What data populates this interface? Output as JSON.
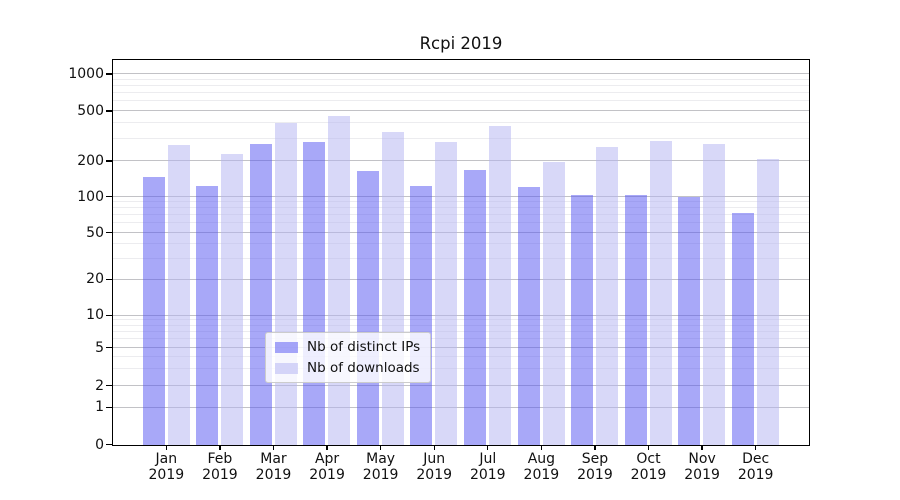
{
  "chart_data": {
    "type": "bar",
    "title": "Rcpi 2019",
    "categories": [
      "Jan",
      "Feb",
      "Mar",
      "Apr",
      "May",
      "Jun",
      "Jul",
      "Aug",
      "Sep",
      "Oct",
      "Nov",
      "Dec"
    ],
    "category_year": "2019",
    "series": [
      {
        "name": "Nb of distinct IPs",
        "color": "#5151f1",
        "opacity": 0.5,
        "rendered_color": "#a8a8f8",
        "values": [
          147,
          125,
          277,
          287,
          167,
          125,
          169,
          121,
          103,
          103,
          101,
          74
        ]
      },
      {
        "name": "Nb of downloads",
        "color": "#b1b1f1",
        "opacity": 0.5,
        "rendered_color": "#d8d8f8",
        "values": [
          272,
          228,
          400,
          455,
          340,
          283,
          380,
          198,
          260,
          288,
          275,
          210
        ]
      }
    ],
    "xlabel": "",
    "ylabel": "",
    "yscale": "symlog",
    "yticks": [
      0,
      1,
      2,
      5,
      10,
      20,
      50,
      100,
      200,
      500,
      1000
    ],
    "ylim": [
      0,
      1300
    ],
    "grid": true,
    "minor_grid": true,
    "legend_position": "lower center"
  }
}
